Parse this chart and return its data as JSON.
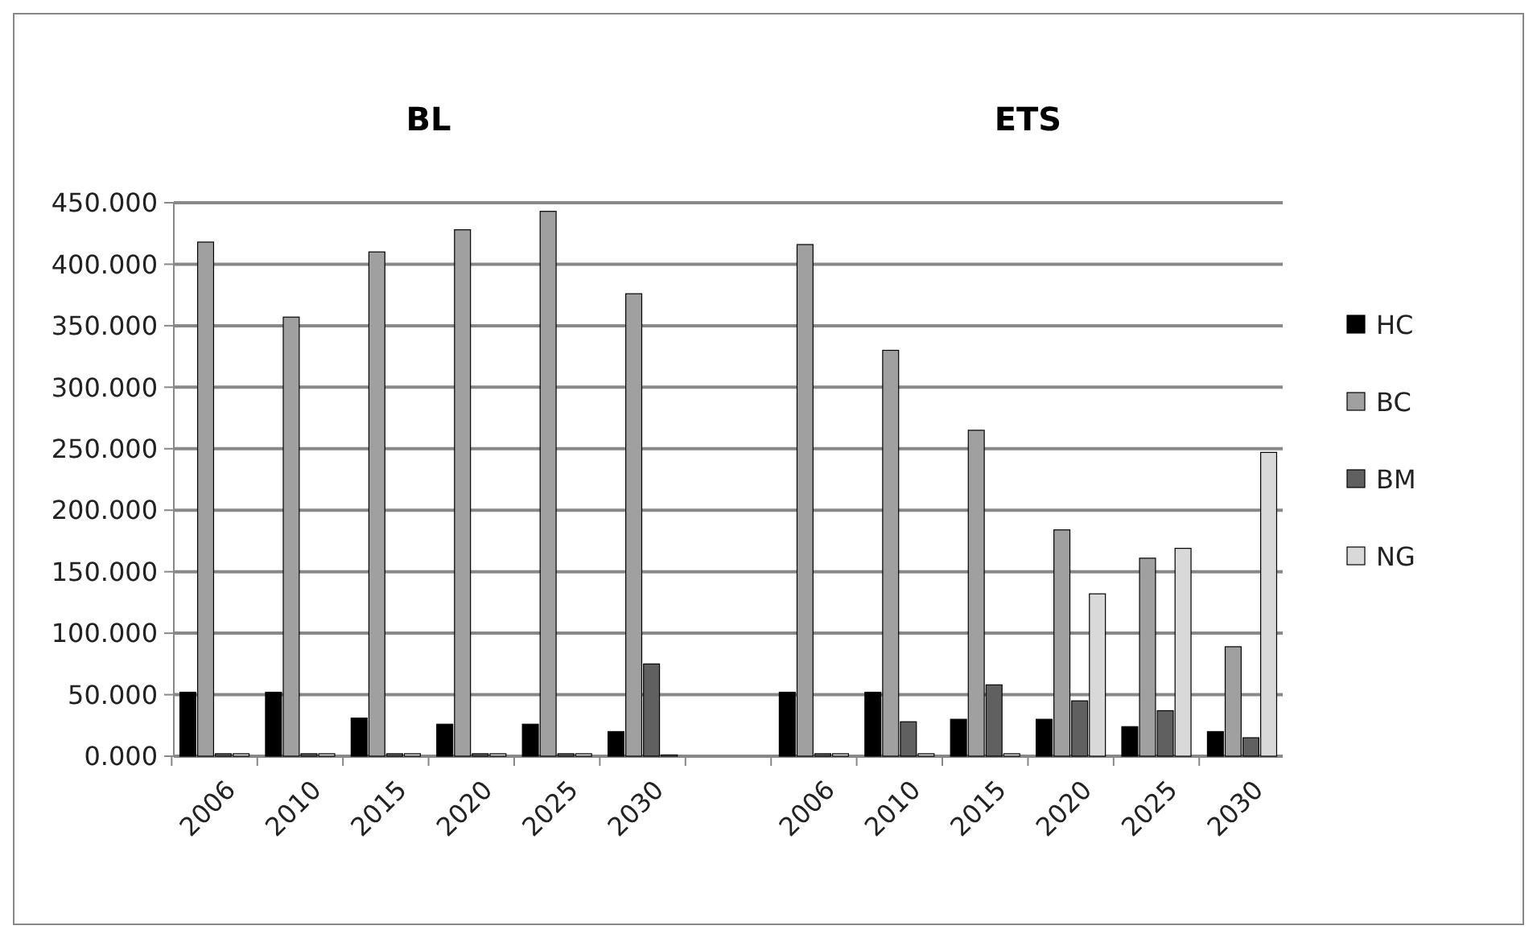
{
  "chart_data": {
    "type": "bar",
    "annotations": [
      "BL",
      "ETS"
    ],
    "categories": [
      "2006",
      "2010",
      "2015",
      "2020",
      "2025",
      "2030",
      null,
      "2006",
      "2010",
      "2015",
      "2020",
      "2025",
      "2030"
    ],
    "series": [
      {
        "name": "HC",
        "color": "#000000",
        "values": [
          52,
          52,
          31,
          26,
          26,
          20,
          null,
          52,
          52,
          30,
          30,
          24,
          20
        ]
      },
      {
        "name": "BC",
        "color": "#a0a0a0",
        "values": [
          418,
          357,
          410,
          428,
          443,
          376,
          null,
          416,
          330,
          265,
          184,
          161,
          89
        ]
      },
      {
        "name": "BM",
        "color": "#606060",
        "values": [
          2,
          2,
          2,
          2,
          2,
          75,
          null,
          2,
          28,
          58,
          45,
          37,
          15
        ]
      },
      {
        "name": "NG",
        "color": "#d9d9d9",
        "values": [
          2,
          2,
          2,
          2,
          2,
          1,
          null,
          2,
          2,
          2,
          132,
          169,
          247
        ]
      }
    ],
    "ylim": [
      0,
      450
    ],
    "yticks": [
      {
        "value": 0,
        "label": "0.000"
      },
      {
        "value": 50,
        "label": "50.000"
      },
      {
        "value": 100,
        "label": "100.000"
      },
      {
        "value": 150,
        "label": "150.000"
      },
      {
        "value": 200,
        "label": "200.000"
      },
      {
        "value": 250,
        "label": "250.000"
      },
      {
        "value": 300,
        "label": "300.000"
      },
      {
        "value": 350,
        "label": "350.000"
      },
      {
        "value": 400,
        "label": "400.000"
      },
      {
        "value": 450,
        "label": "450.000"
      }
    ],
    "grid": "y",
    "legend": "right"
  }
}
